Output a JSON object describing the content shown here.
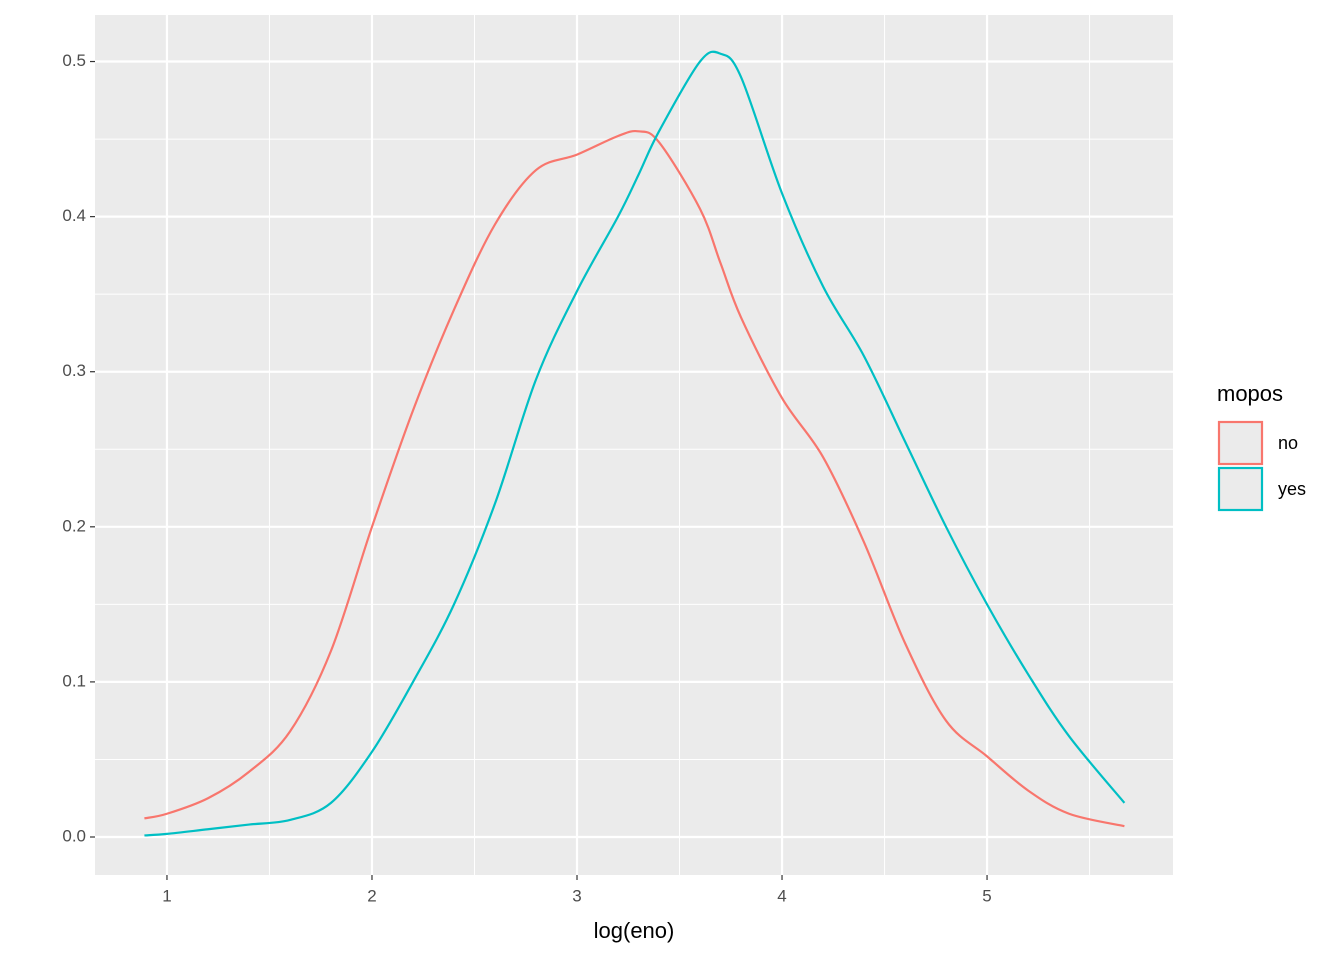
{
  "chart_data": {
    "type": "line",
    "x_label": "log(eno)",
    "legend_title": "mopos",
    "legend_position": "right",
    "grid": true,
    "xlim": [
      0.649,
      5.907
    ],
    "ylim": [
      -0.0245,
      0.53
    ],
    "xticks": [
      1,
      2,
      3,
      4,
      5
    ],
    "yticks": [
      {
        "value": 0,
        "label": "0.0"
      },
      0.1,
      0.2,
      0.3,
      0.4,
      0.5
    ],
    "x": [
      0.89,
      1.0,
      1.2,
      1.4,
      1.6,
      1.8,
      2.0,
      2.2,
      2.4,
      2.6,
      2.8,
      3.0,
      3.2,
      3.3,
      3.4,
      3.6,
      3.7,
      3.8,
      4.0,
      4.2,
      4.4,
      4.6,
      4.8,
      5.0,
      5.2,
      5.4,
      5.67
    ],
    "series": [
      {
        "name": "no",
        "color": "#f8766d",
        "values": [
          0.012,
          0.015,
          0.025,
          0.042,
          0.068,
          0.12,
          0.2,
          0.275,
          0.34,
          0.395,
          0.43,
          0.44,
          0.452,
          0.455,
          0.448,
          0.405,
          0.37,
          0.335,
          0.283,
          0.245,
          0.19,
          0.125,
          0.075,
          0.052,
          0.03,
          0.015,
          0.007
        ]
      },
      {
        "name": "yes",
        "color": "#00bfc4",
        "values": [
          0.001,
          0.002,
          0.005,
          0.008,
          0.011,
          0.022,
          0.055,
          0.1,
          0.15,
          0.215,
          0.295,
          0.352,
          0.4,
          0.427,
          0.455,
          0.5,
          0.505,
          0.49,
          0.415,
          0.355,
          0.31,
          0.255,
          0.2,
          0.15,
          0.105,
          0.065,
          0.022
        ]
      }
    ]
  }
}
